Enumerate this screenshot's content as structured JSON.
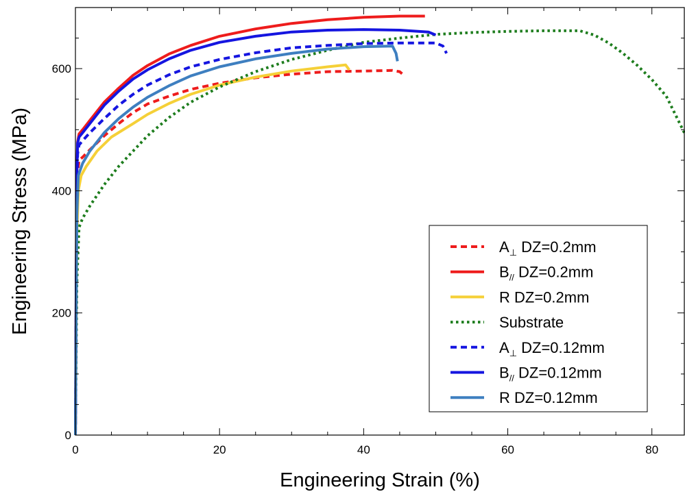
{
  "chart_data": {
    "type": "line",
    "xlabel": "Engineering Strain (%)",
    "ylabel": "Engineering Stress (MPa)",
    "xlim": [
      0,
      84.5
    ],
    "ylim": [
      0,
      700
    ],
    "x_ticks": [
      0,
      20,
      40,
      60,
      80
    ],
    "y_ticks": [
      0,
      200,
      400,
      600
    ],
    "grid": false,
    "legend_position": "lower-right",
    "series": [
      {
        "name": "A⊥ DZ=0.2mm",
        "label_main": "A",
        "label_sub": "⊥",
        "label_rest": " DZ=0.2mm",
        "color": "#ee1c1c",
        "dash": "dashed",
        "points": [
          [
            0,
            0
          ],
          [
            0.1,
            200
          ],
          [
            0.2,
            380
          ],
          [
            0.3,
            430
          ],
          [
            0.5,
            450
          ],
          [
            1,
            455
          ],
          [
            2,
            467
          ],
          [
            4,
            490
          ],
          [
            6,
            510
          ],
          [
            8,
            528
          ],
          [
            10,
            542
          ],
          [
            13,
            555
          ],
          [
            16,
            566
          ],
          [
            20,
            576
          ],
          [
            25,
            585
          ],
          [
            30,
            591
          ],
          [
            35,
            595
          ],
          [
            40,
            596
          ],
          [
            44,
            597
          ],
          [
            45,
            595
          ],
          [
            45.5,
            590
          ]
        ]
      },
      {
        "name": "B// DZ=0.2mm",
        "label_main": "B",
        "label_sub": "//",
        "label_rest": " DZ=0.2mm",
        "color": "#ee1c1c",
        "dash": "solid",
        "points": [
          [
            0,
            0
          ],
          [
            0.1,
            250
          ],
          [
            0.2,
            430
          ],
          [
            0.3,
            480
          ],
          [
            0.5,
            493
          ],
          [
            1,
            500
          ],
          [
            2,
            515
          ],
          [
            4,
            545
          ],
          [
            6,
            568
          ],
          [
            8,
            589
          ],
          [
            10,
            605
          ],
          [
            13,
            624
          ],
          [
            16,
            638
          ],
          [
            20,
            653
          ],
          [
            25,
            665
          ],
          [
            30,
            674
          ],
          [
            35,
            680
          ],
          [
            40,
            684
          ],
          [
            45,
            686
          ],
          [
            48.5,
            686
          ]
        ]
      },
      {
        "name": "R DZ=0.2mm",
        "label_main": "R",
        "label_sub": "",
        "label_rest": " DZ=0.2mm",
        "color": "#f5d038",
        "dash": "solid",
        "points": [
          [
            0,
            0
          ],
          [
            0.1,
            180
          ],
          [
            0.2,
            330
          ],
          [
            0.4,
            400
          ],
          [
            0.8,
            425
          ],
          [
            1.5,
            440
          ],
          [
            3,
            465
          ],
          [
            5,
            488
          ],
          [
            8,
            510
          ],
          [
            10,
            525
          ],
          [
            13,
            543
          ],
          [
            16,
            558
          ],
          [
            20,
            573
          ],
          [
            25,
            586
          ],
          [
            30,
            596
          ],
          [
            35,
            603
          ],
          [
            37.5,
            606
          ],
          [
            38,
            598
          ]
        ]
      },
      {
        "name": "Substrate",
        "label_main": "Substrate",
        "label_sub": "",
        "label_rest": "",
        "color": "#1e7d1e",
        "dash": "dotted",
        "points": [
          [
            0,
            0
          ],
          [
            0.2,
            250
          ],
          [
            0.5,
            340
          ],
          [
            1,
            355
          ],
          [
            2,
            375
          ],
          [
            4,
            410
          ],
          [
            6,
            440
          ],
          [
            8,
            465
          ],
          [
            10,
            490
          ],
          [
            13,
            520
          ],
          [
            16,
            545
          ],
          [
            20,
            570
          ],
          [
            25,
            595
          ],
          [
            30,
            615
          ],
          [
            35,
            630
          ],
          [
            40,
            643
          ],
          [
            45,
            650
          ],
          [
            50,
            656
          ],
          [
            55,
            659
          ],
          [
            60,
            661
          ],
          [
            65,
            662
          ],
          [
            70,
            662
          ],
          [
            72,
            655
          ],
          [
            74,
            642
          ],
          [
            76,
            625
          ],
          [
            78,
            605
          ],
          [
            80,
            582
          ],
          [
            82,
            555
          ],
          [
            84.5,
            495
          ]
        ]
      },
      {
        "name": "A⊥ DZ=0.12mm",
        "label_main": "A",
        "label_sub": "⊥",
        "label_rest": " DZ=0.12mm",
        "color": "#1515e0",
        "dash": "dashed",
        "points": [
          [
            0,
            0
          ],
          [
            0.1,
            230
          ],
          [
            0.2,
            400
          ],
          [
            0.3,
            460
          ],
          [
            0.5,
            475
          ],
          [
            1,
            482
          ],
          [
            2,
            495
          ],
          [
            4,
            518
          ],
          [
            6,
            540
          ],
          [
            8,
            558
          ],
          [
            10,
            573
          ],
          [
            13,
            590
          ],
          [
            16,
            603
          ],
          [
            20,
            615
          ],
          [
            25,
            626
          ],
          [
            30,
            634
          ],
          [
            35,
            638
          ],
          [
            40,
            641
          ],
          [
            45,
            642
          ],
          [
            50,
            642
          ],
          [
            51,
            637
          ],
          [
            51.5,
            625
          ]
        ]
      },
      {
        "name": "B// DZ=0.12mm",
        "label_main": "B",
        "label_sub": "//",
        "label_rest": " DZ=0.12mm",
        "color": "#1515e0",
        "dash": "solid",
        "points": [
          [
            0,
            0
          ],
          [
            0.1,
            250
          ],
          [
            0.2,
            430
          ],
          [
            0.3,
            478
          ],
          [
            0.5,
            488
          ],
          [
            1,
            495
          ],
          [
            2,
            510
          ],
          [
            4,
            540
          ],
          [
            6,
            563
          ],
          [
            8,
            583
          ],
          [
            10,
            598
          ],
          [
            13,
            616
          ],
          [
            16,
            630
          ],
          [
            20,
            643
          ],
          [
            25,
            653
          ],
          [
            30,
            660
          ],
          [
            35,
            663
          ],
          [
            40,
            664
          ],
          [
            45,
            663
          ],
          [
            49,
            660
          ],
          [
            50,
            655
          ]
        ]
      },
      {
        "name": "R DZ=0.12mm",
        "label_main": "R",
        "label_sub": "",
        "label_rest": " DZ=0.12mm",
        "color": "#3e7fc0",
        "dash": "solid",
        "points": [
          [
            0,
            0
          ],
          [
            0.1,
            200
          ],
          [
            0.2,
            360
          ],
          [
            0.4,
            425
          ],
          [
            1,
            445
          ],
          [
            2,
            465
          ],
          [
            4,
            495
          ],
          [
            6,
            518
          ],
          [
            8,
            537
          ],
          [
            10,
            553
          ],
          [
            13,
            572
          ],
          [
            16,
            588
          ],
          [
            20,
            603
          ],
          [
            25,
            616
          ],
          [
            30,
            625
          ],
          [
            35,
            632
          ],
          [
            40,
            636
          ],
          [
            44,
            637
          ],
          [
            44.5,
            625
          ],
          [
            44.7,
            612
          ]
        ]
      }
    ]
  }
}
